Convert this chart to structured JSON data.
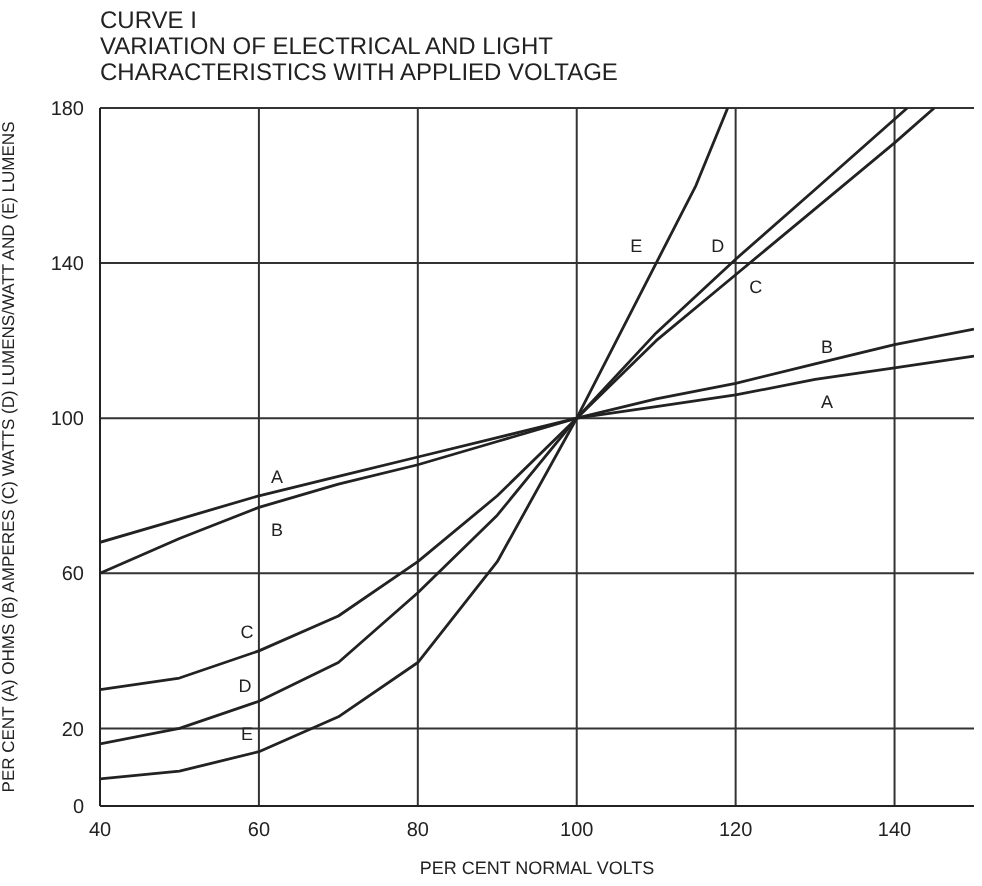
{
  "chart_data": {
    "type": "line",
    "title": "CURVE I",
    "subtitle": "VARIATION OF ELECTRICAL AND LIGHT CHARACTERISTICS WITH APPLIED VOLTAGE",
    "xlabel": "PER CENT NORMAL VOLTS",
    "ylabel": "PER CENT (A) OHMS (B) AMPERES (C) WATTS (D) LUMENS/WATT AND (E) LUMENS",
    "xlim": [
      40,
      150
    ],
    "xticks": [
      40,
      60,
      80,
      100,
      120,
      140
    ],
    "ylim": [
      0,
      180
    ],
    "yticks": [
      0,
      20,
      60,
      100,
      140,
      180
    ],
    "grid": true,
    "marker": "none",
    "line_style": "solid",
    "series": [
      {
        "name": "A",
        "color": "#222222",
        "x": [
          40,
          50,
          60,
          70,
          80,
          90,
          100,
          110,
          120,
          130,
          140,
          150
        ],
        "values": [
          68,
          74,
          80,
          85,
          90,
          95,
          100,
          103,
          106,
          110,
          113,
          116
        ]
      },
      {
        "name": "B",
        "color": "#222222",
        "x": [
          40,
          50,
          60,
          70,
          80,
          90,
          100,
          110,
          120,
          130,
          140,
          150
        ],
        "values": [
          60,
          69,
          77,
          83,
          88,
          94,
          100,
          105,
          109,
          114,
          119,
          123
        ]
      },
      {
        "name": "C",
        "color": "#222222",
        "x": [
          40,
          50,
          60,
          70,
          80,
          90,
          100,
          110,
          120,
          130,
          140,
          145
        ],
        "values": [
          30,
          33,
          40,
          49,
          63,
          80,
          100,
          120,
          137,
          154,
          171,
          180
        ]
      },
      {
        "name": "D",
        "color": "#222222",
        "x": [
          40,
          50,
          60,
          70,
          80,
          90,
          100,
          110,
          120,
          130,
          141.6
        ],
        "values": [
          16,
          20,
          27,
          37,
          55,
          75,
          100,
          122,
          141,
          159,
          180
        ]
      },
      {
        "name": "E",
        "color": "#222222",
        "x": [
          40,
          50,
          60,
          70,
          80,
          90,
          100,
          105,
          110,
          115,
          119
        ],
        "values": [
          7,
          9,
          14,
          23,
          37,
          63,
          100,
          120,
          140,
          160,
          180
        ]
      }
    ]
  }
}
